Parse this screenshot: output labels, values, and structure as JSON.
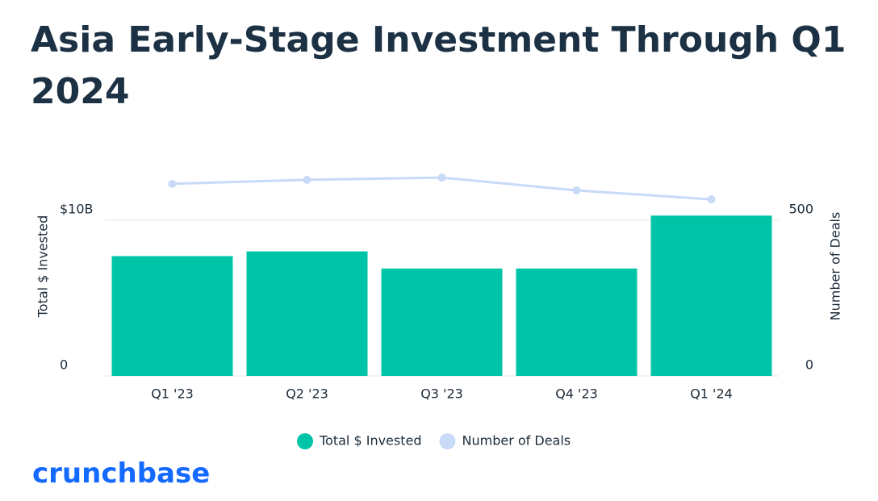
{
  "chart_data": {
    "type": "bar_line",
    "title": "Asia Early-Stage Investment Through Q1 2024",
    "categories": [
      "Q1 '23",
      "Q2 '23",
      "Q3 '23",
      "Q4 '23",
      "Q1 '24"
    ],
    "series": [
      {
        "name": "Total $ Invested",
        "type": "bar",
        "color": "#00c4a7",
        "values": [
          7.7,
          8.0,
          6.9,
          6.9,
          10.3
        ]
      },
      {
        "name": "Number of Deals",
        "type": "line",
        "axis": "y2",
        "color": "#c9daf8",
        "values": [
          617,
          630,
          637,
          596,
          567
        ]
      }
    ],
    "ylabel": "Total $ Invested",
    "y2label": "Number of Deals",
    "ylim": [
      0,
      13.5
    ],
    "yticks": [
      0,
      {
        "value": 10,
        "label": "$10B"
      }
    ],
    "y2lim": [
      0,
      675
    ],
    "y2ticks": [
      0,
      500
    ],
    "grid": true,
    "legend": "bottom"
  },
  "logo": "crunchbase"
}
